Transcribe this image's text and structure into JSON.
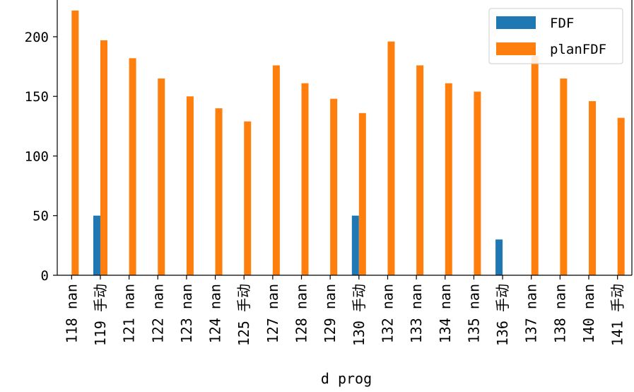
{
  "chart_data": {
    "type": "bar",
    "xlabel": "d prog",
    "ylabel": "",
    "ylim": [
      0,
      232
    ],
    "yticks": [
      0,
      50,
      100,
      150,
      200
    ],
    "categories": [
      "118 nan",
      "119 手动",
      "121 nan",
      "122 nan",
      "123 nan",
      "124 nan",
      "125 手动",
      "127 nan",
      "128 nan",
      "129 nan",
      "130 手动",
      "132 nan",
      "133 nan",
      "134 nan",
      "135 nan",
      "136 手动",
      "137 nan",
      "138 nan",
      "140 nan",
      "141 手动"
    ],
    "series": [
      {
        "name": "FDF",
        "color": "#1f77b4",
        "values": [
          0,
          50,
          0,
          0,
          0,
          0,
          0,
          0,
          0,
          0,
          50,
          0,
          0,
          0,
          0,
          30,
          0,
          0,
          0,
          0
        ]
      },
      {
        "name": "planFDF",
        "color": "#ff7f0e",
        "values": [
          222,
          197,
          182,
          165,
          150,
          140,
          129,
          176,
          161,
          148,
          136,
          196,
          176,
          161,
          154,
          null,
          184,
          165,
          146,
          132
        ]
      }
    ],
    "legend_position": "top-right",
    "grid": false
  }
}
